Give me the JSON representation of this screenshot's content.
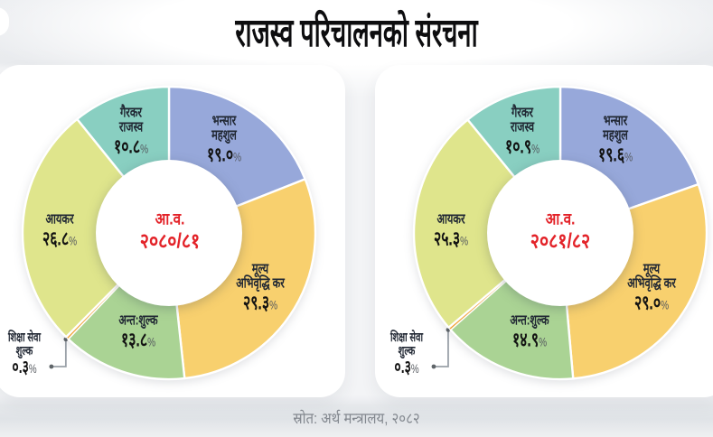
{
  "title": "राजस्व परिचालनको संरचना",
  "source": "स्रोत: अर्थ मन्त्रालय, २०८२",
  "percent_sign": "%",
  "chart_data": [
    {
      "type": "pie",
      "title": "आ.व. २०८०/८१",
      "center_label": {
        "line1": "आ.व.",
        "line2": "२०८०/८१"
      },
      "unit": "%",
      "slices": [
        {
          "name": "भन्सार महशुल",
          "name_lines": [
            "भन्सार",
            "महशुल"
          ],
          "value": 19.0,
          "value_label": "१९.०",
          "color": "#97a8da"
        },
        {
          "name": "मूल्य अभिवृद्धि कर",
          "name_lines": [
            "मूल्य",
            "अभिवृद्धि कर"
          ],
          "value": 29.3,
          "value_label": "२९.३",
          "color": "#f8d06e"
        },
        {
          "name": "अन्त:शुल्क",
          "name_lines": [
            "अन्त:शुल्क"
          ],
          "value": 13.8,
          "value_label": "१३.८",
          "color": "#aad394"
        },
        {
          "name": "शिक्षा सेवा शुल्क",
          "name_lines": [
            "शिक्षा सेवा",
            "शुल्क"
          ],
          "value": 0.3,
          "value_label": "०.३",
          "color": "#f0a338",
          "outside": true
        },
        {
          "name": "आयकर",
          "name_lines": [
            "आयकर"
          ],
          "value": 26.8,
          "value_label": "२६.८",
          "color": "#dfe58c"
        },
        {
          "name": "गैरकर राजस्व",
          "name_lines": [
            "गैरकर",
            "राजस्व"
          ],
          "value": 10.8,
          "value_label": "१०.८",
          "color": "#89cfc1"
        }
      ]
    },
    {
      "type": "pie",
      "title": "आ.व. २०८१/८२",
      "center_label": {
        "line1": "आ.व.",
        "line2": "२०८१/८२"
      },
      "unit": "%",
      "slices": [
        {
          "name": "भन्सार महशुल",
          "name_lines": [
            "भन्सार",
            "महशुल"
          ],
          "value": 19.6,
          "value_label": "१९.६",
          "color": "#97a8da"
        },
        {
          "name": "मूल्य अभिवृद्धि कर",
          "name_lines": [
            "मूल्य",
            "अभिवृद्धि कर"
          ],
          "value": 29.0,
          "value_label": "२९.०",
          "color": "#f8d06e"
        },
        {
          "name": "अन्त:शुल्क",
          "name_lines": [
            "अन्त:शुल्क"
          ],
          "value": 14.9,
          "value_label": "१४.९",
          "color": "#aad394"
        },
        {
          "name": "शिक्षा सेवा शुल्क",
          "name_lines": [
            "शिक्षा सेवा",
            "शुल्क"
          ],
          "value": 0.3,
          "value_label": "०.३",
          "color": "#f0a338",
          "outside": true
        },
        {
          "name": "आयकर",
          "name_lines": [
            "आयकर"
          ],
          "value": 25.3,
          "value_label": "२५.३",
          "color": "#dfe58c"
        },
        {
          "name": "गैरकर राजस्व",
          "name_lines": [
            "गैरकर",
            "राजस्व"
          ],
          "value": 10.9,
          "value_label": "१०.९",
          "color": "#89cfc1"
        }
      ]
    }
  ]
}
